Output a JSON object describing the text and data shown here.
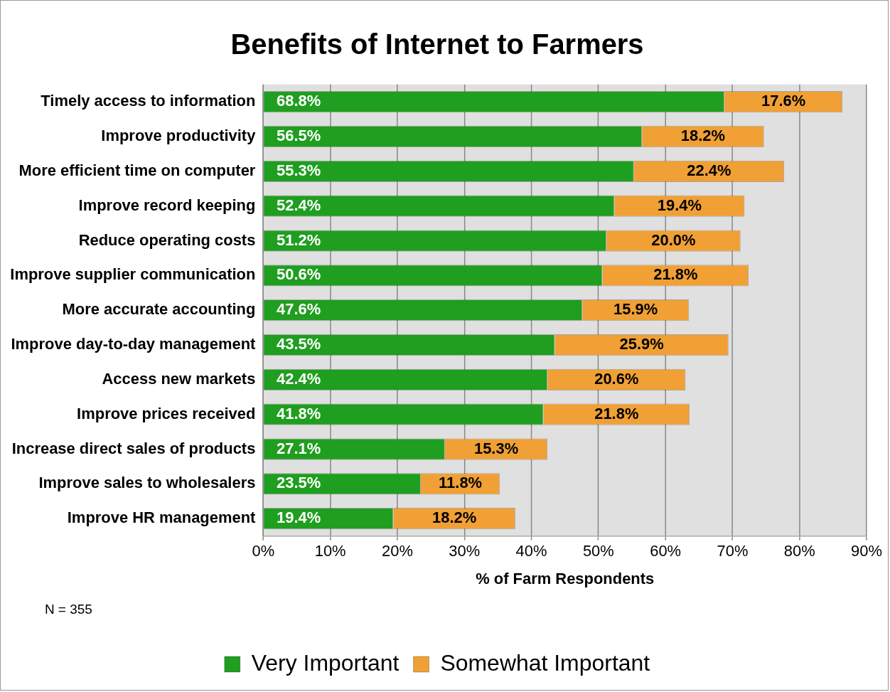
{
  "chart_data": {
    "type": "bar",
    "orientation": "horizontal",
    "stacked": true,
    "title": "Benefits of Internet to Farmers",
    "xlabel": "% of Farm Respondents",
    "categories": [
      "Timely access to information",
      "Improve productivity",
      "More efficient time on computer",
      "Improve record keeping",
      "Reduce operating costs",
      "Improve supplier communication",
      "More accurate accounting",
      "Improve day-to-day management",
      "Access new markets",
      "Improve prices received",
      "Increase direct sales of products",
      "Improve sales to wholesalers",
      "Improve HR management"
    ],
    "series": [
      {
        "name": "Very Important",
        "color": "#1f9e1f",
        "values": [
          68.8,
          56.5,
          55.3,
          52.4,
          51.2,
          50.6,
          47.6,
          43.5,
          42.4,
          41.8,
          27.1,
          23.5,
          19.4
        ],
        "value_labels": [
          "68.8%",
          "56.5%",
          "55.3%",
          "52.4%",
          "51.2%",
          "50.6%",
          "47.6%",
          "43.5%",
          "42.4%",
          "41.8%",
          "27.1%",
          "23.5%",
          "19.4%"
        ]
      },
      {
        "name": "Somewhat Important",
        "color": "#f0a035",
        "values": [
          17.6,
          18.2,
          22.4,
          19.4,
          20.0,
          21.8,
          15.9,
          25.9,
          20.6,
          21.8,
          15.3,
          11.8,
          18.2
        ],
        "value_labels": [
          "17.6%",
          "18.2%",
          "22.4%",
          "19.4%",
          "20.0%",
          "21.8%",
          "15.9%",
          "25.9%",
          "20.6%",
          "21.8%",
          "15.3%",
          "11.8%",
          "18.2%"
        ]
      }
    ],
    "xlim": [
      0,
      90
    ],
    "xticks": [
      {
        "value": 0,
        "label": "0%"
      },
      {
        "value": 10,
        "label": "10%"
      },
      {
        "value": 20,
        "label": "20%"
      },
      {
        "value": 30,
        "label": "30%"
      },
      {
        "value": 40,
        "label": "40%"
      },
      {
        "value": 50,
        "label": "50%"
      },
      {
        "value": 60,
        "label": "60%"
      },
      {
        "value": 70,
        "label": "70%"
      },
      {
        "value": 80,
        "label": "80%"
      },
      {
        "value": 90,
        "label": "90%"
      }
    ],
    "grid": "x",
    "legend": "bottom",
    "annotations": [
      "N = 355"
    ]
  }
}
